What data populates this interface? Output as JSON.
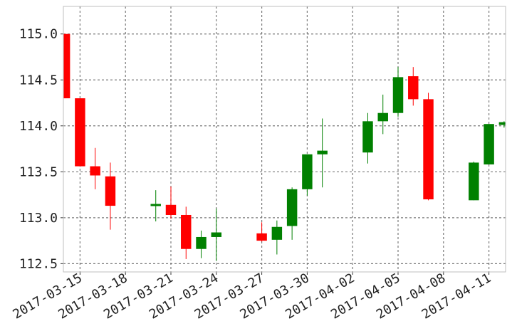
{
  "chart_data": {
    "type": "candlestick",
    "title": "",
    "xlabel": "",
    "ylabel": "",
    "x_ticks": [
      "2017-03-15",
      "2017-03-18",
      "2017-03-21",
      "2017-03-24",
      "2017-03-27",
      "2017-03-30",
      "2017-04-02",
      "2017-04-05",
      "2017-04-08",
      "2017-04-11"
    ],
    "y_ticks": [
      "115.0",
      "114.5",
      "114.0",
      "113.5",
      "113.0",
      "112.5"
    ],
    "xlim": [
      "2017-03-14",
      "2017-04-12"
    ],
    "ylim": [
      112.41,
      115.3
    ],
    "grid": true,
    "up_color": "#008000",
    "down_color": "#ff0000",
    "candles": [
      {
        "date": "2017-03-14",
        "open": 115.0,
        "high": 115.0,
        "low": 114.3,
        "close": 114.3
      },
      {
        "date": "2017-03-15",
        "open": 114.3,
        "high": 114.3,
        "low": 113.56,
        "close": 113.56
      },
      {
        "date": "2017-03-16",
        "open": 113.56,
        "high": 113.76,
        "low": 113.31,
        "close": 113.46
      },
      {
        "date": "2017-03-17",
        "open": 113.45,
        "high": 113.6,
        "low": 112.87,
        "close": 113.13
      },
      {
        "date": "2017-03-20",
        "open": 113.14,
        "high": 113.3,
        "low": 112.96,
        "close": 113.15
      },
      {
        "date": "2017-03-21",
        "open": 113.14,
        "high": 113.34,
        "low": 112.99,
        "close": 113.03
      },
      {
        "date": "2017-03-22",
        "open": 113.03,
        "high": 113.12,
        "low": 112.55,
        "close": 112.66
      },
      {
        "date": "2017-03-23",
        "open": 112.66,
        "high": 112.86,
        "low": 112.56,
        "close": 112.79
      },
      {
        "date": "2017-03-24",
        "open": 112.79,
        "high": 113.1,
        "low": 112.53,
        "close": 112.84
      },
      {
        "date": "2017-03-27",
        "open": 112.83,
        "high": 112.95,
        "low": 112.74,
        "close": 112.75
      },
      {
        "date": "2017-03-28",
        "open": 112.76,
        "high": 112.97,
        "low": 112.6,
        "close": 112.9
      },
      {
        "date": "2017-03-29",
        "open": 112.91,
        "high": 113.33,
        "low": 112.76,
        "close": 113.31
      },
      {
        "date": "2017-03-30",
        "open": 113.31,
        "high": 113.69,
        "low": 113.24,
        "close": 113.69
      },
      {
        "date": "2017-03-31",
        "open": 113.69,
        "high": 114.08,
        "low": 113.33,
        "close": 113.73
      },
      {
        "date": "2017-04-03",
        "open": 113.71,
        "high": 114.14,
        "low": 113.59,
        "close": 114.05
      },
      {
        "date": "2017-04-04",
        "open": 114.05,
        "high": 114.34,
        "low": 113.91,
        "close": 114.14
      },
      {
        "date": "2017-04-05",
        "open": 114.14,
        "high": 114.64,
        "low": 114.1,
        "close": 114.53
      },
      {
        "date": "2017-04-06",
        "open": 114.54,
        "high": 114.64,
        "low": 114.22,
        "close": 114.29
      },
      {
        "date": "2017-04-07",
        "open": 114.29,
        "high": 114.36,
        "low": 113.19,
        "close": 113.2
      },
      {
        "date": "2017-04-10",
        "open": 113.19,
        "high": 113.61,
        "low": 113.19,
        "close": 113.6
      },
      {
        "date": "2017-04-11",
        "open": 113.58,
        "high": 114.02,
        "low": 113.58,
        "close": 114.02
      },
      {
        "date": "2017-04-12",
        "open": 114.01,
        "high": 114.05,
        "low": 113.98,
        "close": 114.04
      }
    ]
  }
}
